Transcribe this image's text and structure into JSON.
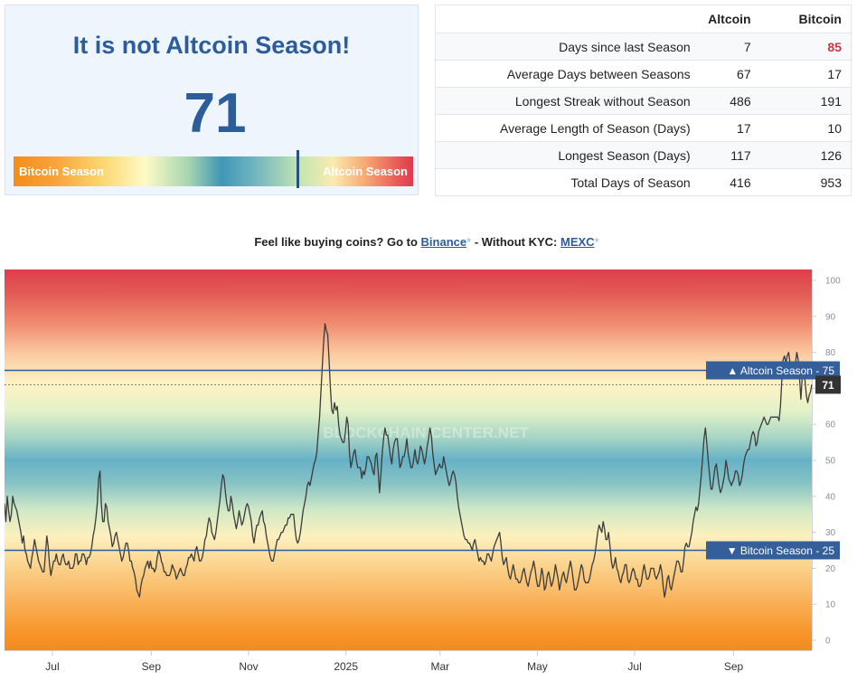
{
  "headline": "It is not Altcoin Season!",
  "index_value": 71,
  "gauge": {
    "left_label": "Bitcoin Season",
    "right_label": "Altcoin Season",
    "value": 71
  },
  "stats": {
    "headers": [
      "",
      "Altcoin",
      "Bitcoin"
    ],
    "rows": [
      {
        "label": "Days since last Season",
        "altcoin": "7",
        "bitcoin": "85"
      },
      {
        "label": "Average Days between Seasons",
        "altcoin": "67",
        "bitcoin": "17"
      },
      {
        "label": "Longest Streak without Season",
        "altcoin": "486",
        "bitcoin": "191"
      },
      {
        "label": "Average Length of Season (Days)",
        "altcoin": "17",
        "bitcoin": "10"
      },
      {
        "label": "Longest Season (Days)",
        "altcoin": "117",
        "bitcoin": "126"
      },
      {
        "label": "Total Days of Season",
        "altcoin": "416",
        "bitcoin": "953"
      }
    ],
    "highlight_color": "#d0343f"
  },
  "promo": {
    "prefix": "Feel like buying coins? Go to",
    "link1": "Binance",
    "middle": "- Without KYC:",
    "link2": "MEXC",
    "star": "*"
  },
  "colors": {
    "accent": "#2c5d9a",
    "line": "#3b3b3b",
    "threshold": "#2c5d9a",
    "label_bg": "#355f9a",
    "current_bg": "#333333"
  },
  "chart_data": {
    "type": "line",
    "series": [
      {
        "start": "2024-06-01",
        "end": "2025-10-20",
        "values": [
          38,
          33,
          40,
          36,
          33,
          35,
          40,
          38,
          37,
          36,
          34,
          32,
          30,
          27,
          29,
          25,
          24,
          22,
          21,
          20,
          23,
          25,
          28,
          26,
          24,
          22,
          21,
          20,
          19,
          19,
          24,
          29,
          26,
          21,
          18,
          20,
          22,
          22,
          24,
          22,
          21,
          21,
          23,
          24,
          22,
          21,
          21,
          22,
          20,
          20,
          20,
          21,
          24,
          24,
          21,
          22,
          22,
          24,
          24,
          23,
          21,
          23,
          23,
          24,
          26,
          29,
          31,
          34,
          38,
          45,
          47,
          38,
          33,
          33,
          38,
          37,
          33,
          31,
          29,
          26,
          27,
          29,
          30,
          28,
          26,
          24,
          22,
          23,
          25,
          27,
          27,
          25,
          22,
          22,
          20,
          19,
          17,
          14,
          13,
          12,
          15,
          17,
          18,
          20,
          21,
          22,
          20,
          22,
          20,
          20,
          19,
          20,
          23,
          25,
          24,
          22,
          21,
          19,
          19,
          18,
          18,
          18,
          19,
          21,
          20,
          19,
          17,
          18,
          19,
          20,
          19,
          18,
          18,
          20,
          21,
          23,
          23,
          24,
          23,
          22,
          25,
          26,
          24,
          22,
          22,
          23,
          25,
          28,
          29,
          32,
          34,
          33,
          30,
          29,
          28,
          30,
          33,
          36,
          39,
          43,
          46,
          45,
          41,
          38,
          36,
          36,
          40,
          38,
          35,
          33,
          31,
          33,
          36,
          34,
          32,
          33,
          35,
          37,
          38,
          37,
          35,
          33,
          29,
          27,
          30,
          32,
          32,
          34,
          35,
          36,
          33,
          32,
          29,
          27,
          25,
          23,
          22,
          22,
          24,
          26,
          28,
          28,
          29,
          30,
          30,
          31,
          32,
          32,
          34,
          34,
          35,
          35,
          35,
          31,
          28,
          27,
          28,
          30,
          33,
          36,
          38,
          40,
          43,
          44,
          43,
          45,
          47,
          49,
          50,
          52,
          57,
          62,
          69,
          76,
          83,
          88,
          86,
          85,
          78,
          70,
          64,
          63,
          66,
          64,
          65,
          60,
          57,
          56,
          55,
          55,
          58,
          62,
          60,
          52,
          48,
          50,
          52,
          53,
          50,
          48,
          48,
          48,
          45,
          47,
          46,
          48,
          51,
          51,
          50,
          49,
          47,
          46,
          51,
          52,
          47,
          41,
          46,
          52,
          56,
          59,
          57,
          57,
          54,
          51,
          49,
          53,
          55,
          56,
          56,
          52,
          48,
          49,
          51,
          51,
          53,
          56,
          52,
          50,
          48,
          48,
          50,
          53,
          50,
          49,
          51,
          54,
          53,
          51,
          49,
          51,
          54,
          56,
          59,
          57,
          52,
          49,
          46,
          47,
          48,
          49,
          48,
          48,
          51,
          49,
          47,
          45,
          43,
          44,
          46,
          47,
          46,
          44,
          40,
          37,
          35,
          33,
          31,
          29,
          28,
          28,
          27,
          27,
          26,
          25,
          27,
          28,
          26,
          24,
          22,
          23,
          22,
          22,
          21,
          22,
          24,
          24,
          23,
          22,
          24,
          26,
          27,
          28,
          29,
          30,
          27,
          23,
          21,
          22,
          23,
          20,
          18,
          17,
          19,
          21,
          19,
          17,
          17,
          16,
          16,
          17,
          19,
          20,
          18,
          16,
          15,
          17,
          19,
          20,
          22,
          20,
          17,
          15,
          15,
          17,
          20,
          18,
          14,
          15,
          18,
          19,
          17,
          15,
          16,
          18,
          21,
          19,
          17,
          14,
          16,
          18,
          19,
          17,
          16,
          18,
          20,
          22,
          20,
          17,
          14,
          14,
          15,
          17,
          19,
          21,
          20,
          17,
          16,
          16,
          16,
          17,
          19,
          21,
          22,
          24,
          27,
          30,
          32,
          31,
          30,
          33,
          31,
          28,
          28,
          30,
          26,
          22,
          20,
          21,
          23,
          20,
          19,
          17,
          16,
          18,
          19,
          21,
          21,
          17,
          16,
          17,
          19,
          20,
          19,
          17,
          17,
          15,
          15,
          16,
          19,
          21,
          19,
          17,
          17,
          18,
          20,
          20,
          20,
          18,
          17,
          18,
          19,
          21,
          19,
          15,
          12,
          14,
          17,
          18,
          15,
          14,
          16,
          18,
          20,
          22,
          22,
          21,
          19,
          19,
          22,
          26,
          27,
          26,
          26,
          28,
          30,
          33,
          35,
          37,
          36,
          38,
          42,
          46,
          51,
          56,
          59,
          55,
          50,
          46,
          42,
          42,
          45,
          48,
          49,
          46,
          43,
          41,
          42,
          44,
          46,
          50,
          48,
          45,
          44,
          43,
          44,
          45,
          47,
          47,
          46,
          43,
          44,
          46,
          49,
          51,
          52,
          53,
          53,
          55,
          57,
          58,
          57,
          54,
          55,
          58,
          59,
          60,
          61,
          62,
          61,
          60,
          60,
          61,
          62,
          62,
          62,
          62,
          62,
          62,
          61,
          65,
          72,
          78,
          79,
          77,
          79,
          80,
          77,
          75,
          74,
          75,
          77,
          80,
          78,
          73,
          67,
          73,
          77,
          72,
          68,
          66,
          68,
          69,
          71
        ]
      }
    ],
    "ylim": [
      0,
      100
    ],
    "yticks": [
      0,
      10,
      20,
      30,
      40,
      50,
      60,
      70,
      80,
      90,
      100
    ],
    "xticks": [
      {
        "label": "Jul",
        "date": "2024-07-01"
      },
      {
        "label": "Sep",
        "date": "2024-09-01"
      },
      {
        "label": "Nov",
        "date": "2024-11-01"
      },
      {
        "label": "2025",
        "date": "2025-01-01"
      },
      {
        "label": "Mar",
        "date": "2025-03-01"
      },
      {
        "label": "May",
        "date": "2025-05-01"
      },
      {
        "label": "Jul",
        "date": "2025-07-01"
      },
      {
        "label": "Sep",
        "date": "2025-09-01"
      }
    ],
    "thresholds": [
      {
        "label": "▲ Altcoin Season - 75",
        "value": 75
      },
      {
        "label": "▼ Bitcoin Season - 25",
        "value": 25
      }
    ],
    "current": {
      "value": 71,
      "label": "71"
    },
    "watermark": "BLOCKCHAIN CENTER.NET",
    "background_bands": "orange bottom, yellow, teal middle, yellow, red top"
  }
}
